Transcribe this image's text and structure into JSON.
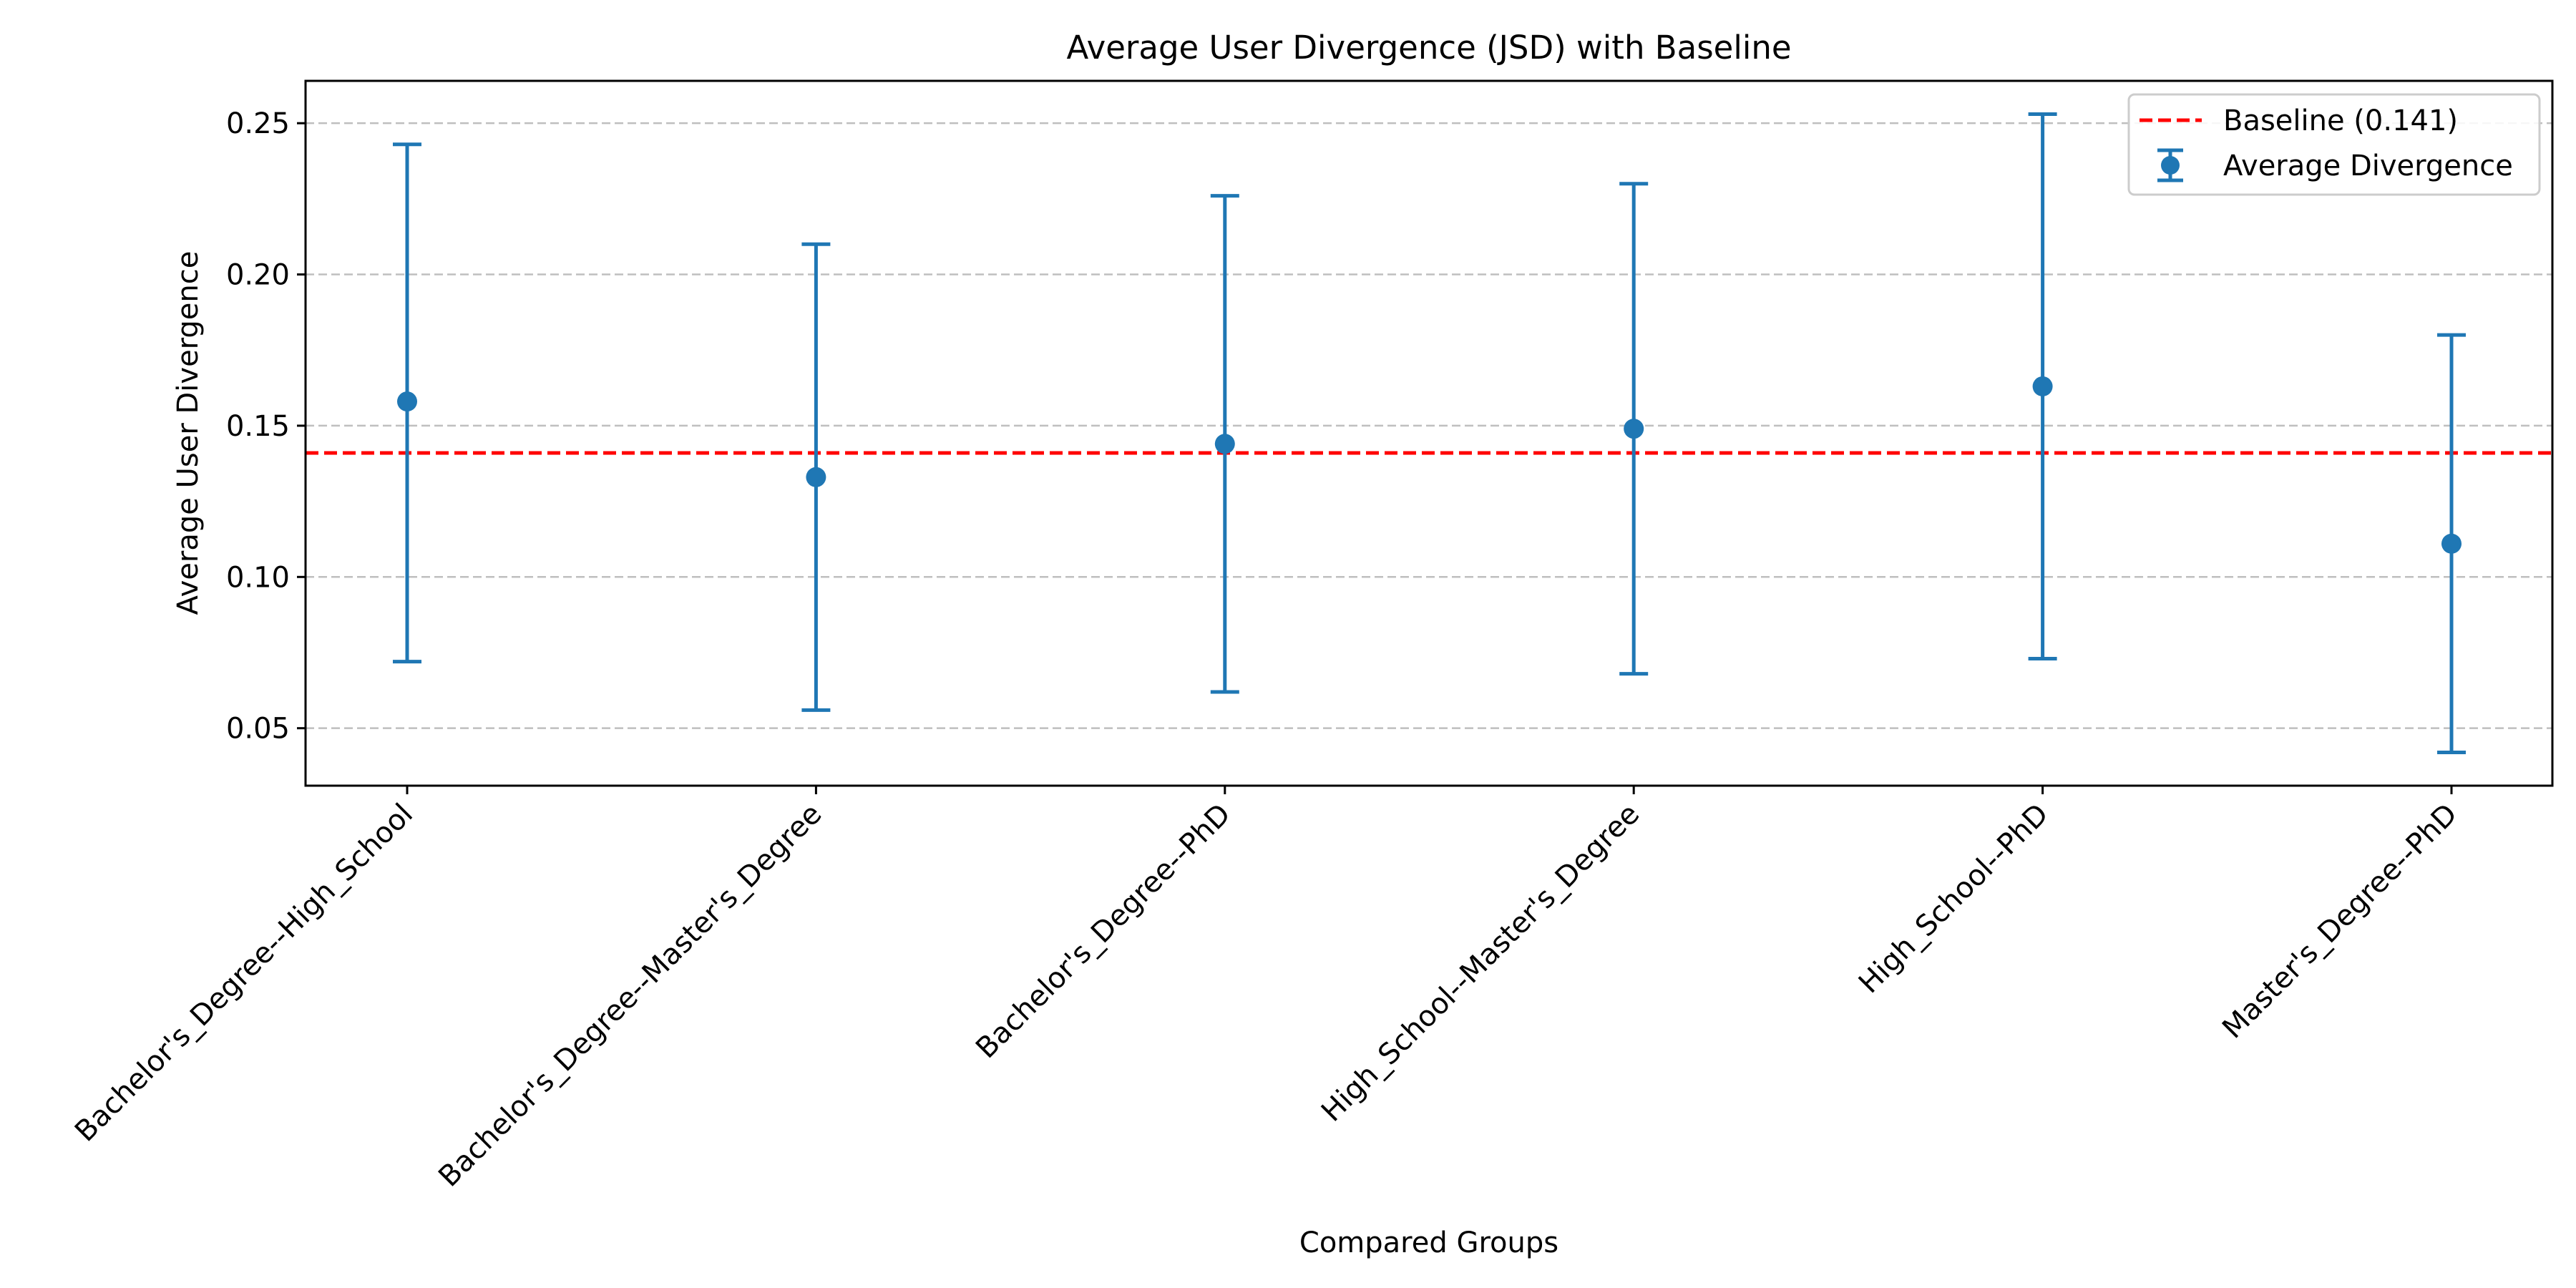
{
  "chart_data": {
    "type": "scatter",
    "title": "Average User Divergence (JSD) with Baseline",
    "xlabel": "Compared Groups",
    "ylabel": "Average User Divergence",
    "categories": [
      "Bachelor's_Degree--High_School",
      "Bachelor's_Degree--Master's_Degree",
      "Bachelor's_Degree--PhD",
      "High_School--Master's_Degree",
      "High_School--PhD",
      "Master's_Degree--PhD"
    ],
    "series": [
      {
        "name": "Average Divergence",
        "values": [
          0.158,
          0.133,
          0.144,
          0.149,
          0.163,
          0.111
        ],
        "error_low": [
          0.072,
          0.056,
          0.062,
          0.068,
          0.073,
          0.042
        ],
        "error_high": [
          0.243,
          0.21,
          0.226,
          0.23,
          0.253,
          0.18
        ]
      }
    ],
    "baseline": {
      "label": "Baseline (0.141)",
      "value": 0.141
    },
    "ylim": [
      0.031,
      0.264
    ],
    "yticks": [
      0.05,
      0.1,
      0.15,
      0.2,
      0.25
    ],
    "ytick_labels": [
      "0.05",
      "0.10",
      "0.15",
      "0.20",
      "0.25"
    ],
    "grid": "y-dashed",
    "legend_position": "top-right",
    "colors": {
      "series": "#1f77b4",
      "baseline": "#ff0000",
      "grid": "#bfbfbf"
    }
  }
}
